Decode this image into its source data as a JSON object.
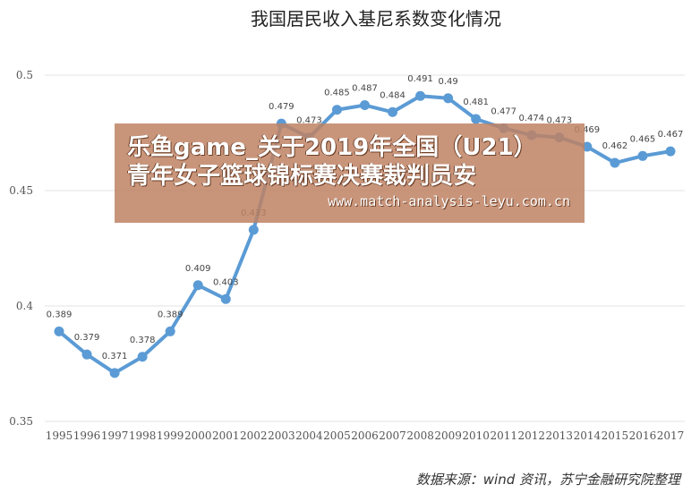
{
  "chart_data": {
    "type": "line",
    "title": "我国居民收入基尼系数变化情况",
    "categories": [
      "1995",
      "1996",
      "1997",
      "1998",
      "1999",
      "2000",
      "2001",
      "2002",
      "2003",
      "2004",
      "2005",
      "2006",
      "2007",
      "2008",
      "2009",
      "2010",
      "2011",
      "2012",
      "2013",
      "2014",
      "2015",
      "2016",
      "2017"
    ],
    "series": [
      {
        "values": [
          0.389,
          0.379,
          0.371,
          0.378,
          0.389,
          0.409,
          0.403,
          0.433,
          0.479,
          0.473,
          0.485,
          0.487,
          0.484,
          0.491,
          0.49,
          0.481,
          0.477,
          0.474,
          0.473,
          0.469,
          0.462,
          0.465,
          0.467
        ]
      }
    ],
    "data_labels": [
      "0.389",
      "0.379",
      "0.371",
      "0.378",
      "0.389",
      "0.409",
      "0.403",
      "0.433",
      "0.479",
      "0.473",
      "0.485",
      "0.487",
      "0.484",
      "0.491",
      "0.49",
      "0.481",
      "0.477",
      "0.474",
      "0.473",
      "0.469",
      "0.462",
      "0.465",
      "0.467"
    ],
    "yticks": [
      0.35,
      0.4,
      0.45,
      0.5
    ],
    "ytick_labels": [
      "0.35",
      "0.4",
      "0.45",
      "0.5"
    ],
    "ylim": [
      0.35,
      0.5
    ],
    "grid": true,
    "line_color": "#5b9bd5",
    "source": "数据来源：wind 资讯，苏宁金融研究院整理"
  },
  "overlay": {
    "line1": "乐鱼game_关于2019年全国（U21）",
    "line2": "青年女子篮球锦标赛决赛裁判员安",
    "url": "www.match-analysis-leyu.com.cn"
  }
}
